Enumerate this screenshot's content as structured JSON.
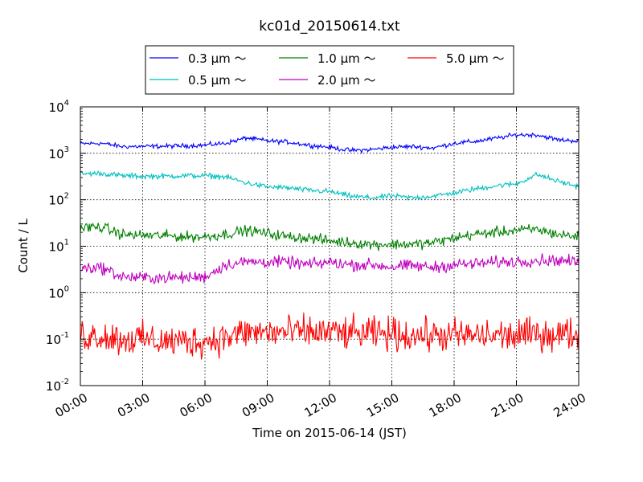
{
  "chart_data": {
    "type": "line",
    "title": "kc01d_20150614.txt",
    "xlabel": "Time on 2015-06-14 (JST)",
    "ylabel": "Count / L",
    "y_scale": "log",
    "grid": true,
    "legend_position": "top-center",
    "xlim": [
      "2015-06-14 00:00",
      "2015-06-15 00:00"
    ],
    "ylim": [
      0.01,
      10000
    ],
    "x_tick_labels": [
      "00:00",
      "03:00",
      "06:00",
      "09:00",
      "12:00",
      "15:00",
      "18:00",
      "21:00",
      "24:00"
    ],
    "y_tick_labels": [
      {
        "base": "10",
        "exp": "-2"
      },
      {
        "base": "10",
        "exp": "-1"
      },
      {
        "base": "10",
        "exp": "0"
      },
      {
        "base": "10",
        "exp": "1"
      },
      {
        "base": "10",
        "exp": "2"
      },
      {
        "base": "10",
        "exp": "3"
      },
      {
        "base": "10",
        "exp": "4"
      }
    ],
    "x": [
      "00:00",
      "01:00",
      "02:00",
      "03:00",
      "04:00",
      "05:00",
      "06:00",
      "07:00",
      "08:00",
      "09:00",
      "10:00",
      "11:00",
      "12:00",
      "13:00",
      "14:00",
      "15:00",
      "16:00",
      "17:00",
      "18:00",
      "19:00",
      "20:00",
      "21:00",
      "22:00",
      "23:00",
      "24:00"
    ],
    "series": [
      {
        "name": "0.3 μm ～",
        "color": "#0000ff",
        "noise": 0.03,
        "values": [
          1600,
          1650,
          1400,
          1400,
          1420,
          1450,
          1500,
          1650,
          2150,
          1850,
          1750,
          1500,
          1350,
          1150,
          1200,
          1350,
          1400,
          1300,
          1650,
          1800,
          2100,
          2500,
          2500,
          1950,
          1850
        ]
      },
      {
        "name": "0.5 μm ～",
        "color": "#00bfbf",
        "noise": 0.035,
        "values": [
          360,
          370,
          330,
          320,
          320,
          330,
          330,
          310,
          230,
          190,
          180,
          160,
          150,
          120,
          110,
          120,
          110,
          120,
          140,
          170,
          200,
          220,
          350,
          250,
          190
        ]
      },
      {
        "name": "1.0 μm ～",
        "color": "#008000",
        "noise": 0.07,
        "values": [
          25,
          26,
          18,
          17,
          17,
          16,
          16,
          18,
          22,
          19,
          16,
          15,
          13,
          12,
          11,
          11,
          11,
          12,
          15,
          18,
          20,
          22,
          23,
          18,
          16
        ]
      },
      {
        "name": "2.0 μm ～",
        "color": "#bf00bf",
        "noise": 0.08,
        "values": [
          3.4,
          3.5,
          2.2,
          2.1,
          2.1,
          2.1,
          2.2,
          4.0,
          4.6,
          4.6,
          4.5,
          4.0,
          4.5,
          4.0,
          4.0,
          3.6,
          3.8,
          3.5,
          4.0,
          4.2,
          4.5,
          4.7,
          5.0,
          5.0,
          4.5
        ]
      },
      {
        "name": "5.0 μm ～",
        "color": "#ff0000",
        "noise": 0.22,
        "values": [
          0.12,
          0.12,
          0.1,
          0.1,
          0.09,
          0.09,
          0.09,
          0.11,
          0.14,
          0.14,
          0.14,
          0.14,
          0.14,
          0.13,
          0.13,
          0.13,
          0.12,
          0.12,
          0.12,
          0.12,
          0.12,
          0.12,
          0.13,
          0.13,
          0.13
        ]
      }
    ]
  }
}
